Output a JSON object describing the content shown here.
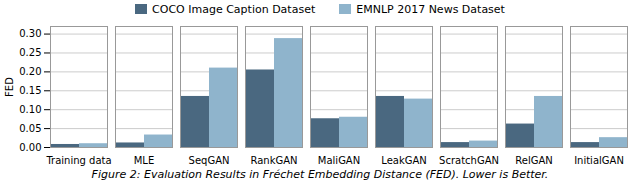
{
  "chart_data": {
    "type": "bar",
    "caption": "Figure 2: Evaluation Results in Fréchet Embedding Distance (FED). Lower is Better.",
    "ylabel": "FED",
    "categories": [
      "Training data",
      "MLE",
      "SeqGAN",
      "RankGAN",
      "MaliGAN",
      "LeakGAN",
      "ScratchGAN",
      "RelGAN",
      "InitialGAN"
    ],
    "series": [
      {
        "name": "COCO Image Caption Dataset",
        "color": "#4a6880",
        "values": [
          0.008,
          0.012,
          0.135,
          0.205,
          0.076,
          0.135,
          0.013,
          0.062,
          0.013
        ]
      },
      {
        "name": "EMNLP 2017 News Dataset",
        "color": "#8fb4cc",
        "values": [
          0.01,
          0.033,
          0.21,
          0.288,
          0.08,
          0.128,
          0.017,
          0.135,
          0.026
        ]
      }
    ],
    "ylim": [
      0,
      0.32
    ],
    "yticks": [
      {
        "value": 0,
        "label": "0.00"
      },
      0.05,
      {
        "value": 0.1,
        "label": "0.10"
      },
      0.15,
      {
        "value": 0.2,
        "label": "0.20"
      },
      0.25,
      {
        "value": 0.3,
        "label": "0.30"
      }
    ],
    "grid": true,
    "legend": "top"
  }
}
